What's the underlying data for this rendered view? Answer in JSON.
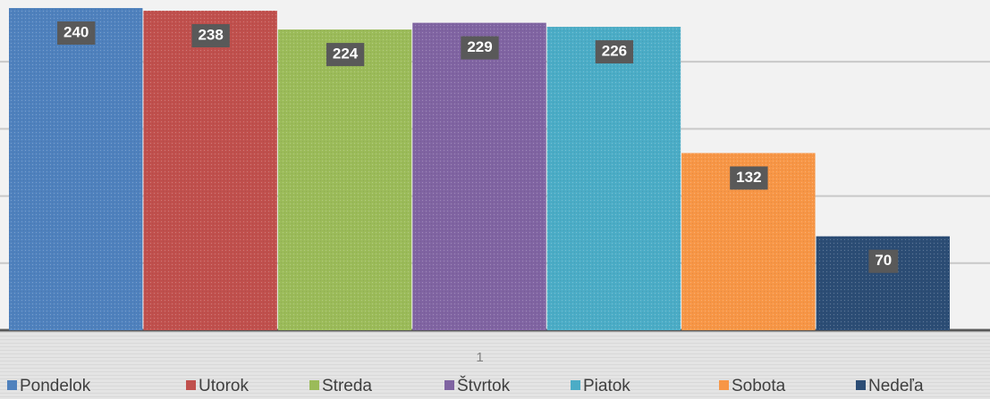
{
  "chart_data": {
    "type": "bar",
    "categories": [
      "1"
    ],
    "series": [
      {
        "name": "Pondelok",
        "color": "#4f81bd",
        "values": [
          240
        ]
      },
      {
        "name": "Utorok",
        "color": "#c0504d",
        "values": [
          238
        ]
      },
      {
        "name": "Streda",
        "color": "#9bbb59",
        "values": [
          224
        ]
      },
      {
        "name": "Štvrtok",
        "color": "#8064a2",
        "values": [
          229
        ]
      },
      {
        "name": "Piatok",
        "color": "#4bacc6",
        "values": [
          226
        ]
      },
      {
        "name": "Sobota",
        "color": "#f79646",
        "values": [
          132
        ]
      },
      {
        "name": "Nedeľa",
        "color": "#2c4d75",
        "values": [
          70
        ]
      }
    ],
    "ylim": [
      0,
      246
    ],
    "yticks": [
      0,
      50,
      100,
      150,
      200
    ],
    "grid": true,
    "legend": "bottom"
  }
}
